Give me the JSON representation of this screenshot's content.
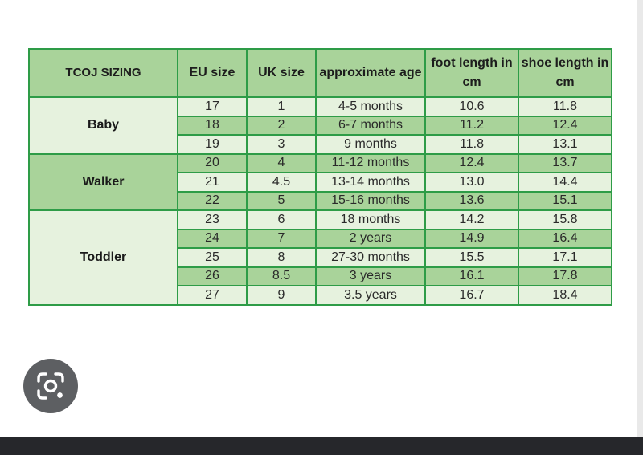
{
  "table": {
    "headers": [
      "TCOJ SIZING",
      "EU size",
      "UK size",
      "approximate age",
      "foot length in cm",
      "shoe length in cm"
    ],
    "groups": [
      {
        "label": "Baby",
        "rows": [
          {
            "eu": "17",
            "uk": "1",
            "age": "4-5 months",
            "foot": "10.6",
            "shoe": "11.8"
          },
          {
            "eu": "18",
            "uk": "2",
            "age": "6-7 months",
            "foot": "11.2",
            "shoe": "12.4"
          },
          {
            "eu": "19",
            "uk": "3",
            "age": "9 months",
            "foot": "11.8",
            "shoe": "13.1"
          }
        ]
      },
      {
        "label": "Walker",
        "rows": [
          {
            "eu": "20",
            "uk": "4",
            "age": "11-12 months",
            "foot": "12.4",
            "shoe": "13.7"
          },
          {
            "eu": "21",
            "uk": "4.5",
            "age": "13-14 months",
            "foot": "13.0",
            "shoe": "14.4"
          },
          {
            "eu": "22",
            "uk": "5",
            "age": "15-16 months",
            "foot": "13.6",
            "shoe": "15.1"
          }
        ]
      },
      {
        "label": "Toddler",
        "rows": [
          {
            "eu": "23",
            "uk": "6",
            "age": "18 months",
            "foot": "14.2",
            "shoe": "15.8"
          },
          {
            "eu": "24",
            "uk": "7",
            "age": "2 years",
            "foot": "14.9",
            "shoe": "16.4"
          },
          {
            "eu": "25",
            "uk": "8",
            "age": "27-30 months",
            "foot": "15.5",
            "shoe": "17.1"
          },
          {
            "eu": "26",
            "uk": "8.5",
            "age": "3 years",
            "foot": "16.1",
            "shoe": "17.8"
          },
          {
            "eu": "27",
            "uk": "9",
            "age": "3.5 years",
            "foot": "16.7",
            "shoe": "18.4"
          }
        ]
      }
    ]
  },
  "lens_button": {
    "icon": "camera-lens-icon"
  },
  "colors": {
    "header_green": "#a9d39a",
    "light_green": "#e6f2de",
    "border_green": "#2e9c47",
    "lens_gray": "#5d5f62",
    "bottom_bar": "#26272b"
  }
}
